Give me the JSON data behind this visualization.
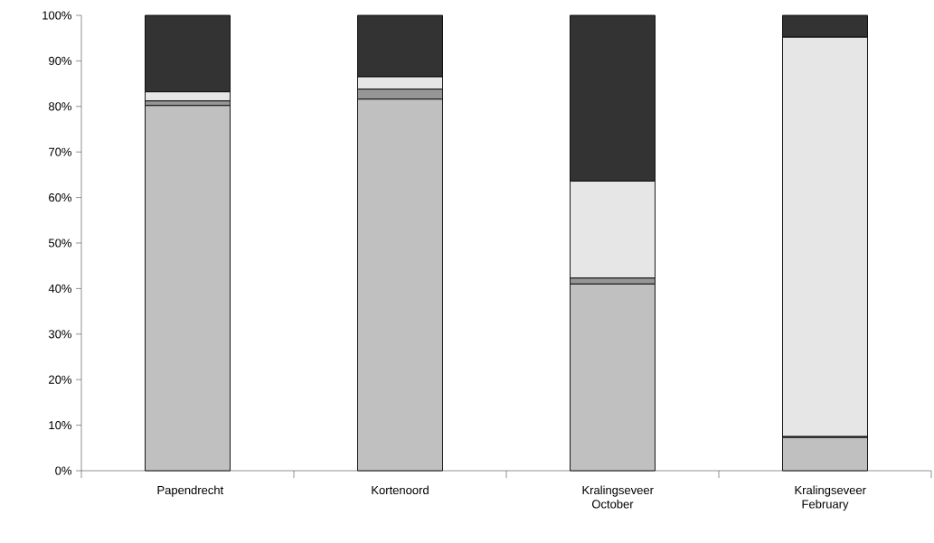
{
  "chart_data": {
    "type": "bar",
    "stacked": true,
    "categories": [
      "Papendrecht",
      "Kortenoord",
      "Kralingseveer October",
      "Kralingseveer February"
    ],
    "series": [
      {
        "color": "#c0c0c0",
        "values": [
          80.2,
          81.6,
          41.0,
          7.3
        ]
      },
      {
        "color": "#969696",
        "values": [
          1.0,
          2.2,
          1.3,
          0.2
        ]
      },
      {
        "color": "#e6e6e6",
        "values": [
          2.0,
          2.7,
          21.3,
          87.7
        ]
      },
      {
        "color": "#333333",
        "values": [
          16.8,
          13.5,
          36.4,
          4.8
        ]
      }
    ],
    "ylim": [
      0,
      100
    ],
    "yticks": [
      {
        "value": 0,
        "label": "0%"
      },
      {
        "value": 10,
        "label": "10%"
      },
      {
        "value": 20,
        "label": "20%"
      },
      {
        "value": 30,
        "label": "30%"
      },
      {
        "value": 40,
        "label": "40%"
      },
      {
        "value": 50,
        "label": "50%"
      },
      {
        "value": 60,
        "label": "60%"
      },
      {
        "value": 70,
        "label": "70%"
      },
      {
        "value": 80,
        "label": "80%"
      },
      {
        "value": 90,
        "label": "90%"
      },
      {
        "value": 100,
        "label": "100%"
      }
    ],
    "grid": false,
    "legend": false
  }
}
